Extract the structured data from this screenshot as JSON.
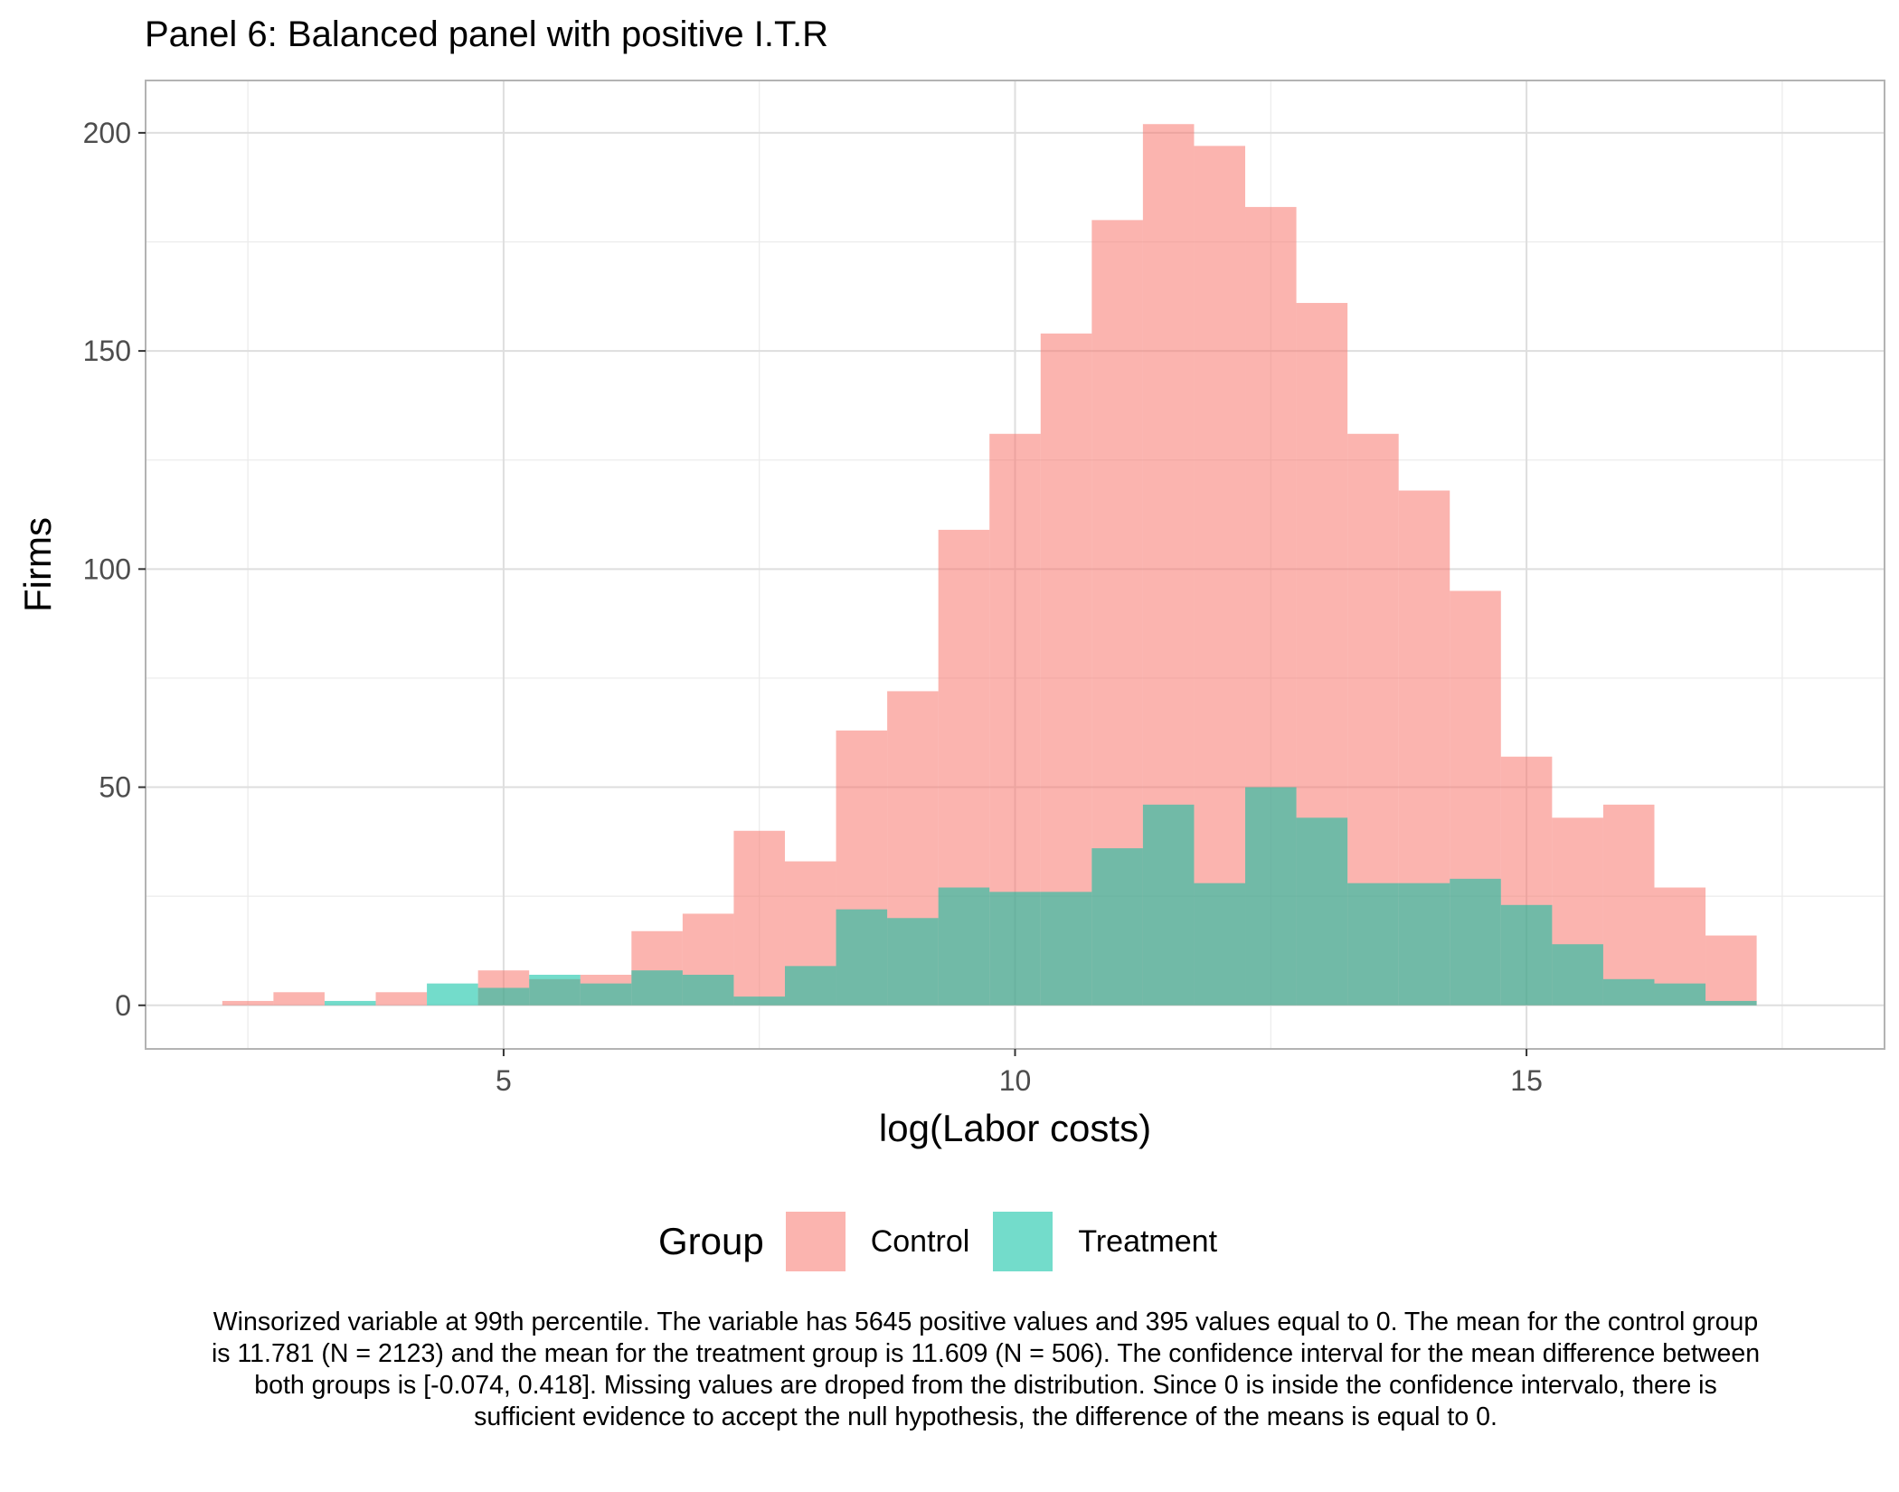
{
  "chart_data": {
    "type": "histogram",
    "title": "Panel 6: Balanced panel with positive I.T.R",
    "xlabel": "log(Labor costs)",
    "ylabel": "Firms",
    "xlim": [
      1.5,
      18.5
    ],
    "ylim": [
      -10,
      212
    ],
    "x_ticks": [
      5,
      10,
      15
    ],
    "y_ticks": [
      0,
      50,
      100,
      150,
      200
    ],
    "bin_width": 0.5,
    "grid": true,
    "legend": {
      "title": "Group",
      "position": "bottom",
      "entries": [
        {
          "label": "Control",
          "color": "#f8766d"
        },
        {
          "label": "Treatment",
          "color": "#00bfa0"
        }
      ]
    },
    "bin_starts": [
      2.25,
      2.75,
      3.25,
      3.75,
      4.25,
      4.75,
      5.25,
      5.75,
      6.25,
      6.75,
      7.25,
      7.75,
      8.25,
      8.75,
      9.25,
      9.75,
      10.25,
      10.75,
      11.25,
      11.75,
      12.25,
      12.75,
      13.25,
      13.75,
      14.25,
      14.75,
      15.25,
      15.75,
      16.25,
      16.75
    ],
    "series": [
      {
        "name": "Control",
        "color": "#f8766d",
        "values": [
          1,
          3,
          0,
          3,
          0,
          8,
          6,
          7,
          17,
          21,
          40,
          33,
          63,
          72,
          109,
          131,
          154,
          180,
          202,
          197,
          183,
          161,
          131,
          118,
          95,
          57,
          43,
          46,
          27,
          16
        ]
      },
      {
        "name": "Treatment",
        "color": "#00bfa0",
        "values": [
          0,
          0,
          1,
          0,
          5,
          4,
          7,
          5,
          8,
          7,
          2,
          9,
          22,
          20,
          27,
          26,
          26,
          36,
          46,
          28,
          50,
          43,
          28,
          28,
          29,
          23,
          14,
          6,
          5,
          1
        ]
      }
    ],
    "caption": "Winsorized variable at 99th percentile. The variable has 5645 positive values and 395 values equal to 0. The mean for the control group is 11.781 (N = 2123) and the mean for the treatment group is 11.609 (N = 506). The confidence interval for the mean difference between both groups is [-0.074, 0.418]. Missing values are droped from the distribution. Since 0 is inside the confidence intervalo, there is sufficient evidence to accept the null hypothesis, the difference of the means is equal to 0."
  }
}
